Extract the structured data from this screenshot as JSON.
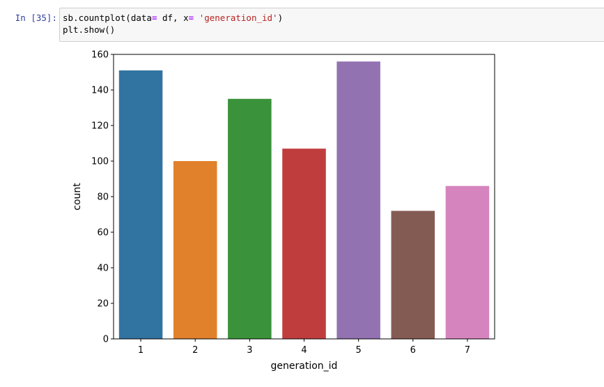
{
  "cell": {
    "prompt": "In [35]:",
    "code_lines": [
      {
        "tokens": [
          {
            "text": "sb.countplot(data",
            "type": "plain"
          },
          {
            "text": "=",
            "type": "op"
          },
          {
            "text": " df, x",
            "type": "plain"
          },
          {
            "text": "=",
            "type": "op"
          },
          {
            "text": " ",
            "type": "plain"
          },
          {
            "text": "'generation_id'",
            "type": "str"
          },
          {
            "text": ")",
            "type": "plain"
          }
        ]
      },
      {
        "tokens": [
          {
            "text": "plt.show()",
            "type": "plain"
          }
        ]
      }
    ]
  },
  "chart_data": {
    "type": "bar",
    "categories": [
      "1",
      "2",
      "3",
      "4",
      "5",
      "6",
      "7"
    ],
    "values": [
      151,
      100,
      135,
      107,
      156,
      72,
      86
    ],
    "colors": [
      "#3274a1",
      "#e1812c",
      "#3a923a",
      "#c03d3e",
      "#9372b2",
      "#845b53",
      "#d684bd"
    ],
    "xlabel": "generation_id",
    "ylabel": "count",
    "ylim": [
      0,
      160
    ],
    "yticks": [
      0,
      20,
      40,
      60,
      80,
      100,
      120,
      140,
      160
    ],
    "grid": false,
    "title": ""
  }
}
